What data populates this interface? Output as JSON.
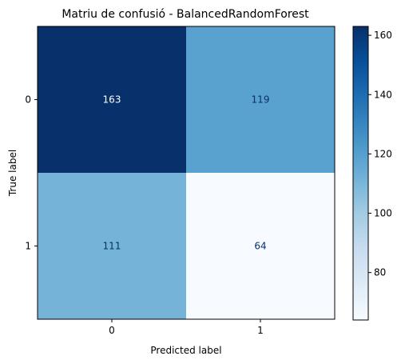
{
  "chart_data": {
    "type": "heatmap",
    "title": "Matriu de confusió - BalancedRandomForest",
    "xlabel": "Predicted label",
    "ylabel": "True label",
    "x_categories": [
      "0",
      "1"
    ],
    "y_categories": [
      "0",
      "1"
    ],
    "matrix": [
      [
        163,
        119
      ],
      [
        111,
        64
      ]
    ],
    "colormap": "Blues",
    "vmin": 64,
    "vmax": 163,
    "colorbar_ticks": [
      80,
      100,
      120,
      140,
      160
    ],
    "colorbar_tick_labels": [
      "80",
      "100",
      "120",
      "140",
      "160"
    ],
    "grid": false
  }
}
